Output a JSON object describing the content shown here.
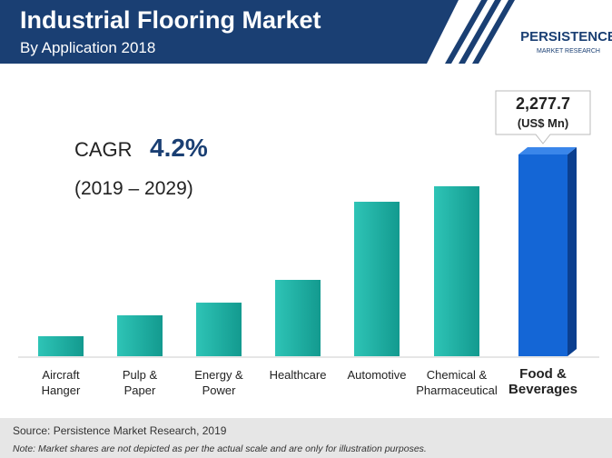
{
  "header": {
    "title": "Industrial Flooring Market",
    "subtitle": "By Application 2018",
    "logo": "PERSISTENCE",
    "logo_tagline": "MARKET RESEARCH"
  },
  "chart_data": {
    "type": "bar",
    "categories": [
      "Aircraft\nHanger",
      "Pulp &\nPaper",
      "Energy &\nPower",
      "Healthcare",
      "Automotive",
      "Chemical &\nPharmaceutical",
      "Food &\nBeverages"
    ],
    "values": [
      226,
      462,
      605,
      862,
      1744,
      1919,
      2277.7
    ],
    "value_labels": [
      null,
      null,
      null,
      null,
      null,
      null,
      "2,277.7"
    ],
    "unit_label": "(US$ Mn)",
    "colors": [
      "#1fb3a6",
      "#1fb3a6",
      "#1fb3a6",
      "#1fb3a6",
      "#1fb3a6",
      "#1fb3a6",
      "#1466d6"
    ],
    "cagr_label": "CAGR",
    "cagr_value": "4.2%",
    "cagr_period": "(2019 – 2029)"
  },
  "footer": {
    "source": "Source: Persistence Market Research, 2019",
    "note": "Note: Market shares are not depicted as per the actual scale and are only for illustration purposes."
  }
}
